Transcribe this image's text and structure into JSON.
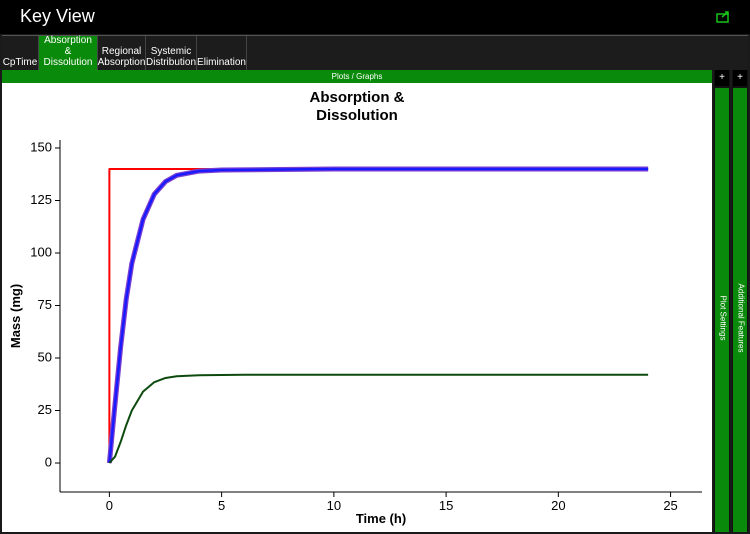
{
  "header": {
    "title": "Key View"
  },
  "tabs": [
    "CpTime",
    "Absorption & Dissolution",
    "Regional Absorption",
    "Systemic Distribution",
    "Elimination"
  ],
  "panel_title": "Plots / Graphs",
  "side_panels": [
    {
      "button": "+",
      "label": "Plot Settings"
    },
    {
      "button": "+",
      "label": "Additional Features"
    }
  ],
  "chart_data": {
    "type": "line",
    "title": "Absorption & Dissolution",
    "x_label": "Time (h)",
    "y_label": "Mass (mg)",
    "xlim": [
      -2.2,
      26.4
    ],
    "ylim": [
      -13.8,
      153.8
    ],
    "xticks": [
      0,
      5,
      10,
      15,
      20,
      25
    ],
    "yticks": [
      0,
      25,
      50,
      75,
      100,
      125,
      150
    ],
    "series": [
      {
        "color": "#ff0000",
        "x": [
          0,
          0,
          24
        ],
        "values": [
          0,
          140,
          140
        ]
      },
      {
        "color": "#7b3fd0",
        "x": [
          0,
          0.25,
          0.5,
          0.75,
          1,
          1.5,
          2,
          2.5,
          3,
          4,
          5,
          10,
          24
        ],
        "values": [
          0,
          28,
          55,
          78,
          95,
          116,
          128,
          134,
          137,
          139,
          139.5,
          140,
          140
        ]
      },
      {
        "color": "#1a1aff",
        "x": [
          0,
          0.25,
          0.5,
          0.75,
          1,
          1.5,
          2,
          2.5,
          3,
          4,
          5,
          10,
          24
        ],
        "values": [
          0,
          28,
          55,
          78,
          95,
          116,
          128,
          134,
          137,
          139,
          139.5,
          140,
          140
        ]
      },
      {
        "color": "#0d4a0d",
        "x": [
          0,
          0.25,
          0.5,
          0.75,
          1,
          1.5,
          2,
          2.5,
          3,
          4,
          6,
          24
        ],
        "values": [
          0,
          3,
          10,
          18,
          25,
          34,
          38.5,
          40.5,
          41.3,
          41.8,
          42,
          42
        ]
      }
    ]
  }
}
